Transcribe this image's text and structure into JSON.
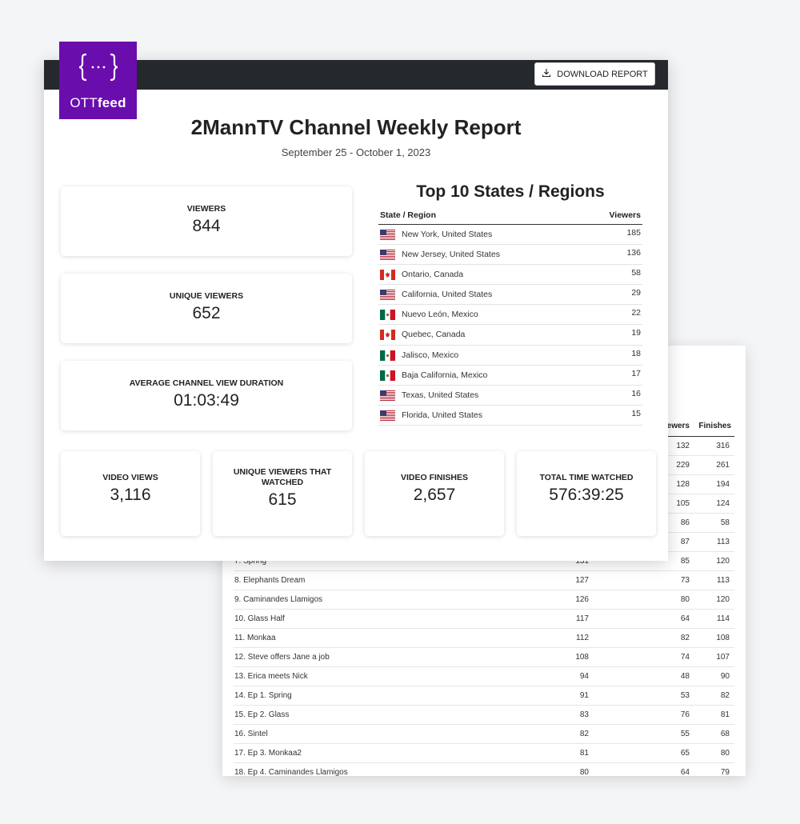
{
  "brand": {
    "logo_text_light": "OTT",
    "logo_text_bold": "feed",
    "color": "#6a0dad"
  },
  "toolbar": {
    "download_label": "DOWNLOAD REPORT",
    "download_icon": "download-icon"
  },
  "report": {
    "title": "2MannTV Channel Weekly Report",
    "date_range": "September 25 - October 1, 2023"
  },
  "kpis": {
    "viewers": {
      "label": "VIEWERS",
      "value": "844"
    },
    "unique_viewers": {
      "label": "UNIQUE VIEWERS",
      "value": "652"
    },
    "avg_duration": {
      "label": "AVERAGE CHANNEL VIEW DURATION",
      "value": "01:03:49"
    },
    "video_views": {
      "label": "VIDEO VIEWS",
      "value": "3,116"
    },
    "unique_watched": {
      "label": "UNIQUE VIEWERS THAT WATCHED",
      "value": "615"
    },
    "video_finishes": {
      "label": "VIDEO FINISHES",
      "value": "2,657"
    },
    "total_time": {
      "label": "TOTAL TIME WATCHED",
      "value": "576:39:25"
    }
  },
  "regions": {
    "title": "Top 10 States / Regions",
    "col_region": "State / Region",
    "col_viewers": "Viewers",
    "rows": [
      {
        "flag": "us",
        "name": "New York, United States",
        "viewers": "185"
      },
      {
        "flag": "us",
        "name": "New Jersey, United States",
        "viewers": "136"
      },
      {
        "flag": "ca",
        "name": "Ontario, Canada",
        "viewers": "58"
      },
      {
        "flag": "us",
        "name": "California, United States",
        "viewers": "29"
      },
      {
        "flag": "mx",
        "name": "Nuevo León, Mexico",
        "viewers": "22"
      },
      {
        "flag": "ca",
        "name": "Quebec, Canada",
        "viewers": "19"
      },
      {
        "flag": "mx",
        "name": "Jalisco, Mexico",
        "viewers": "18"
      },
      {
        "flag": "mx",
        "name": "Baja California, Mexico",
        "viewers": "17"
      },
      {
        "flag": "us",
        "name": "Texas, United States",
        "viewers": "16"
      },
      {
        "flag": "us",
        "name": "Florida, United States",
        "viewers": "15"
      }
    ]
  },
  "videos": {
    "col_viewers": "Viewers",
    "col_finishes": "Finishes",
    "rows": [
      {
        "title": "",
        "views": "",
        "viewers": "132",
        "finishes": "316"
      },
      {
        "title": "",
        "views": "",
        "viewers": "229",
        "finishes": "261"
      },
      {
        "title": "",
        "views": "",
        "viewers": "128",
        "finishes": "194"
      },
      {
        "title": "",
        "views": "",
        "viewers": "105",
        "finishes": "124"
      },
      {
        "title": "",
        "views": "",
        "viewers": "86",
        "finishes": "58"
      },
      {
        "title": "",
        "views": "",
        "viewers": "87",
        "finishes": "113"
      },
      {
        "title": "7. Spring",
        "views": "131",
        "viewers": "85",
        "finishes": "120"
      },
      {
        "title": "8. Elephants Dream",
        "views": "127",
        "viewers": "73",
        "finishes": "113"
      },
      {
        "title": "9. Caminandes Llamigos",
        "views": "126",
        "viewers": "80",
        "finishes": "120"
      },
      {
        "title": "10. Glass Half",
        "views": "117",
        "viewers": "64",
        "finishes": "114"
      },
      {
        "title": "11. Monkaa",
        "views": "112",
        "viewers": "82",
        "finishes": "108"
      },
      {
        "title": "12. Steve offers Jane a job",
        "views": "108",
        "viewers": "74",
        "finishes": "107"
      },
      {
        "title": "13. Erica meets Nick",
        "views": "94",
        "viewers": "48",
        "finishes": "90"
      },
      {
        "title": "14. Ep 1. Spring",
        "views": "91",
        "viewers": "53",
        "finishes": "82"
      },
      {
        "title": "15. Ep 2. Glass",
        "views": "83",
        "viewers": "76",
        "finishes": "81"
      },
      {
        "title": "16. Sintel",
        "views": "82",
        "viewers": "55",
        "finishes": "68"
      },
      {
        "title": "17. Ep 3. Monkaa2",
        "views": "81",
        "viewers": "65",
        "finishes": "80"
      },
      {
        "title": "18. Ep 4. Caminandes Llamigos",
        "views": "80",
        "viewers": "64",
        "finishes": "79"
      }
    ]
  }
}
